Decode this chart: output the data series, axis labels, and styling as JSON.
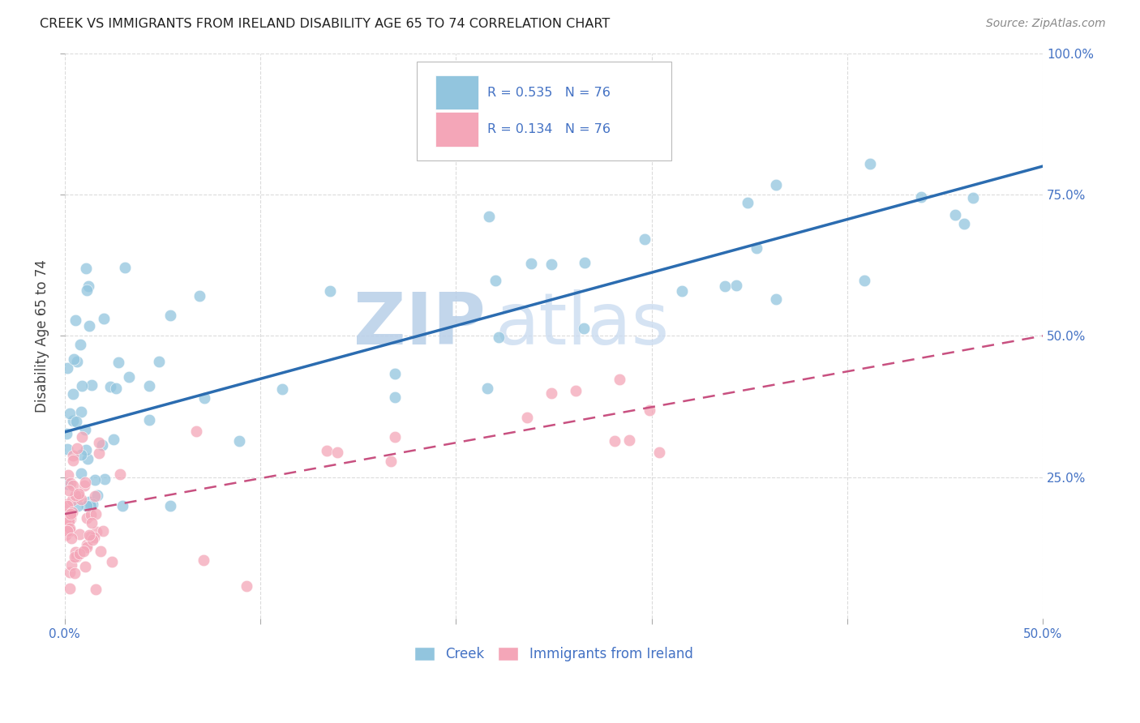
{
  "title": "CREEK VS IMMIGRANTS FROM IRELAND DISABILITY AGE 65 TO 74 CORRELATION CHART",
  "source": "Source: ZipAtlas.com",
  "ylabel": "Disability Age 65 to 74",
  "xlim": [
    0.0,
    0.5
  ],
  "ylim": [
    0.0,
    1.0
  ],
  "blue_R": 0.535,
  "blue_N": 76,
  "pink_R": 0.134,
  "pink_N": 76,
  "blue_color": "#92c5de",
  "pink_color": "#f4a6b8",
  "blue_line_color": "#2b6cb0",
  "pink_line_color": "#c85080",
  "grid_color": "#cccccc",
  "axis_color": "#4472c4",
  "watermark": "ZIPatlas",
  "watermark_color": "#dde8f5",
  "legend_label_blue": "Creek",
  "legend_label_pink": "Immigrants from Ireland",
  "blue_trend_x0": 0.0,
  "blue_trend_y0": 0.33,
  "blue_trend_x1": 0.5,
  "blue_trend_y1": 0.8,
  "pink_trend_x0": 0.0,
  "pink_trend_y0": 0.185,
  "pink_trend_x1": 0.5,
  "pink_trend_y1": 0.5
}
